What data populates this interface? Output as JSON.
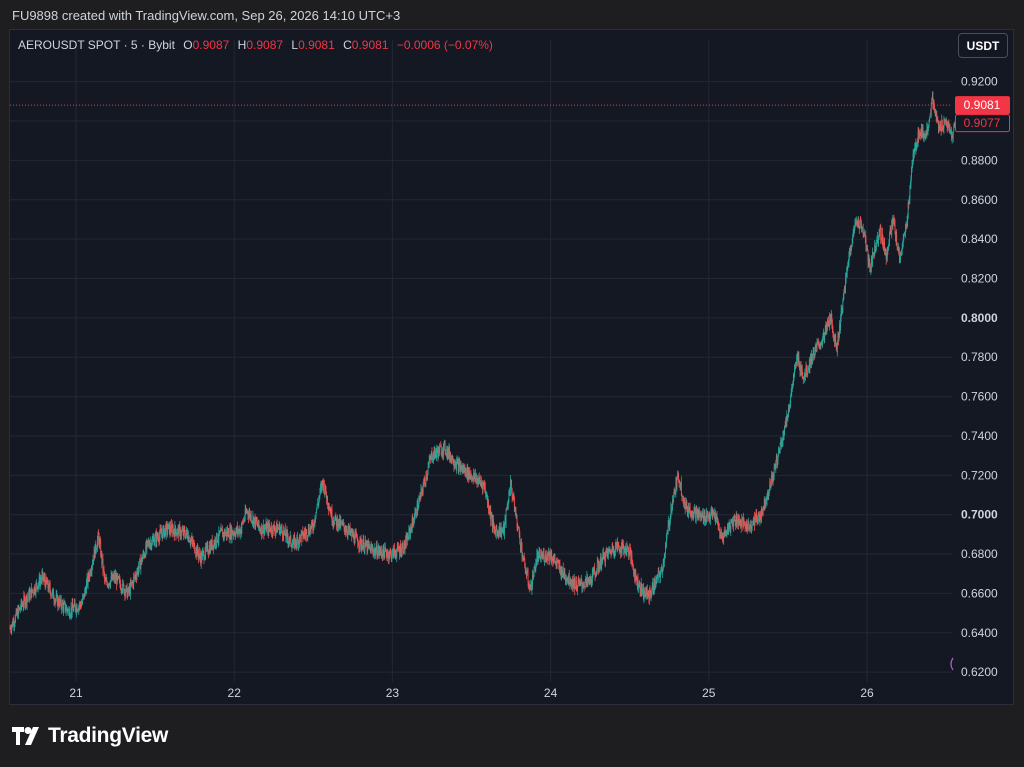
{
  "header": {
    "caption": "FU9898 created with TradingView.com, Sep 26, 2026 14:10 UTC+3"
  },
  "legend": {
    "symbol": "AEROUSDT SPOT · 5 · Bybit",
    "o_label": "O",
    "o": "0.9087",
    "h_label": "H",
    "h": "0.9087",
    "l_label": "L",
    "l": "0.9081",
    "c_label": "C",
    "c": "0.9081",
    "change": "−0.0006 (−0.07%)"
  },
  "currency_button": "USDT",
  "brand": {
    "name": "TradingView"
  },
  "colors": {
    "up": "#26a69a",
    "down": "#ef5350",
    "last_price": "#f23645",
    "background": "#141823",
    "grid": "#232734",
    "text": "#d1d4dc"
  },
  "chart_data": {
    "type": "candlestick",
    "symbol": "AEROUSDT",
    "interval": "5",
    "exchange": "Bybit",
    "x_ticks": [
      "21",
      "22",
      "23",
      "24",
      "25",
      "26"
    ],
    "y_ticks": [
      "0.6200",
      "0.6400",
      "0.6600",
      "0.6800",
      "0.7000",
      "0.7200",
      "0.7400",
      "0.7600",
      "0.7800",
      "0.8000",
      "0.8200",
      "0.8400",
      "0.8600",
      "0.8800",
      "0.9000",
      "0.9200"
    ],
    "y_bold_ticks": [
      "0.7000",
      "0.8000"
    ],
    "ylim": [
      0.615,
      0.931
    ],
    "x_range": [
      "Sep 20 14:00",
      "Sep 26 14:10"
    ],
    "last_price": "0.9081",
    "secondary_price": "0.9077",
    "grid": true,
    "price_path": [
      {
        "t": "20 14:00",
        "v": 0.642
      },
      {
        "t": "20 16:00",
        "v": 0.655
      },
      {
        "t": "20 19:00",
        "v": 0.668
      },
      {
        "t": "20 21:00",
        "v": 0.657
      },
      {
        "t": "20 23:00",
        "v": 0.651
      },
      {
        "t": "21 01:00",
        "v": 0.655
      },
      {
        "t": "21 03:30",
        "v": 0.689
      },
      {
        "t": "21 04:30",
        "v": 0.665
      },
      {
        "t": "21 06:00",
        "v": 0.668
      },
      {
        "t": "21 08:00",
        "v": 0.66
      },
      {
        "t": "21 11:00",
        "v": 0.685
      },
      {
        "t": "21 14:00",
        "v": 0.693
      },
      {
        "t": "21 17:00",
        "v": 0.69
      },
      {
        "t": "21 19:00",
        "v": 0.678
      },
      {
        "t": "21 22:00",
        "v": 0.69
      },
      {
        "t": "22 01:00",
        "v": 0.692
      },
      {
        "t": "22 02:00",
        "v": 0.702
      },
      {
        "t": "22 04:00",
        "v": 0.693
      },
      {
        "t": "22 07:00",
        "v": 0.693
      },
      {
        "t": "22 09:00",
        "v": 0.685
      },
      {
        "t": "22 12:00",
        "v": 0.694
      },
      {
        "t": "22 13:30",
        "v": 0.717
      },
      {
        "t": "22 15:00",
        "v": 0.698
      },
      {
        "t": "22 17:00",
        "v": 0.693
      },
      {
        "t": "22 19:00",
        "v": 0.686
      },
      {
        "t": "22 21:00",
        "v": 0.682
      },
      {
        "t": "23 00:00",
        "v": 0.68
      },
      {
        "t": "23 02:00",
        "v": 0.684
      },
      {
        "t": "23 04:00",
        "v": 0.705
      },
      {
        "t": "23 06:00",
        "v": 0.73
      },
      {
        "t": "23 08:00",
        "v": 0.734
      },
      {
        "t": "23 10:00",
        "v": 0.725
      },
      {
        "t": "23 12:00",
        "v": 0.72
      },
      {
        "t": "23 14:00",
        "v": 0.715
      },
      {
        "t": "23 15:30",
        "v": 0.692
      },
      {
        "t": "23 17:00",
        "v": 0.692
      },
      {
        "t": "23 18:00",
        "v": 0.716
      },
      {
        "t": "23 20:00",
        "v": 0.676
      },
      {
        "t": "23 21:00",
        "v": 0.662
      },
      {
        "t": "23 22:00",
        "v": 0.678
      },
      {
        "t": "24 00:00",
        "v": 0.68
      },
      {
        "t": "24 02:00",
        "v": 0.67
      },
      {
        "t": "24 04:00",
        "v": 0.664
      },
      {
        "t": "24 06:00",
        "v": 0.666
      },
      {
        "t": "24 08:00",
        "v": 0.678
      },
      {
        "t": "24 10:00",
        "v": 0.684
      },
      {
        "t": "24 12:00",
        "v": 0.682
      },
      {
        "t": "24 13:00",
        "v": 0.668
      },
      {
        "t": "24 14:00",
        "v": 0.661
      },
      {
        "t": "24 15:00",
        "v": 0.659
      },
      {
        "t": "24 17:00",
        "v": 0.672
      },
      {
        "t": "24 18:30",
        "v": 0.706
      },
      {
        "t": "24 19:30",
        "v": 0.72
      },
      {
        "t": "24 20:30",
        "v": 0.704
      },
      {
        "t": "24 23:00",
        "v": 0.699
      },
      {
        "t": "25 01:00",
        "v": 0.7
      },
      {
        "t": "25 02:00",
        "v": 0.688
      },
      {
        "t": "25 04:00",
        "v": 0.698
      },
      {
        "t": "25 06:00",
        "v": 0.694
      },
      {
        "t": "25 08:00",
        "v": 0.7
      },
      {
        "t": "25 10:00",
        "v": 0.722
      },
      {
        "t": "25 12:00",
        "v": 0.75
      },
      {
        "t": "25 13:30",
        "v": 0.78
      },
      {
        "t": "25 14:30",
        "v": 0.77
      },
      {
        "t": "25 16:00",
        "v": 0.782
      },
      {
        "t": "25 17:30",
        "v": 0.79
      },
      {
        "t": "25 18:30",
        "v": 0.8
      },
      {
        "t": "25 19:30",
        "v": 0.785
      },
      {
        "t": "25 20:30",
        "v": 0.81
      },
      {
        "t": "25 21:30",
        "v": 0.835
      },
      {
        "t": "25 22:30",
        "v": 0.85
      },
      {
        "t": "25 23:30",
        "v": 0.845
      },
      {
        "t": "26 00:30",
        "v": 0.825
      },
      {
        "t": "26 02:00",
        "v": 0.845
      },
      {
        "t": "26 03:00",
        "v": 0.832
      },
      {
        "t": "26 04:00",
        "v": 0.85
      },
      {
        "t": "26 05:00",
        "v": 0.83
      },
      {
        "t": "26 06:00",
        "v": 0.845
      },
      {
        "t": "26 07:00",
        "v": 0.88
      },
      {
        "t": "26 08:00",
        "v": 0.895
      },
      {
        "t": "26 09:00",
        "v": 0.893
      },
      {
        "t": "26 10:00",
        "v": 0.91
      },
      {
        "t": "26 11:00",
        "v": 0.896
      },
      {
        "t": "26 12:00",
        "v": 0.9
      },
      {
        "t": "26 13:00",
        "v": 0.892
      },
      {
        "t": "26 14:10",
        "v": 0.9081
      }
    ]
  }
}
